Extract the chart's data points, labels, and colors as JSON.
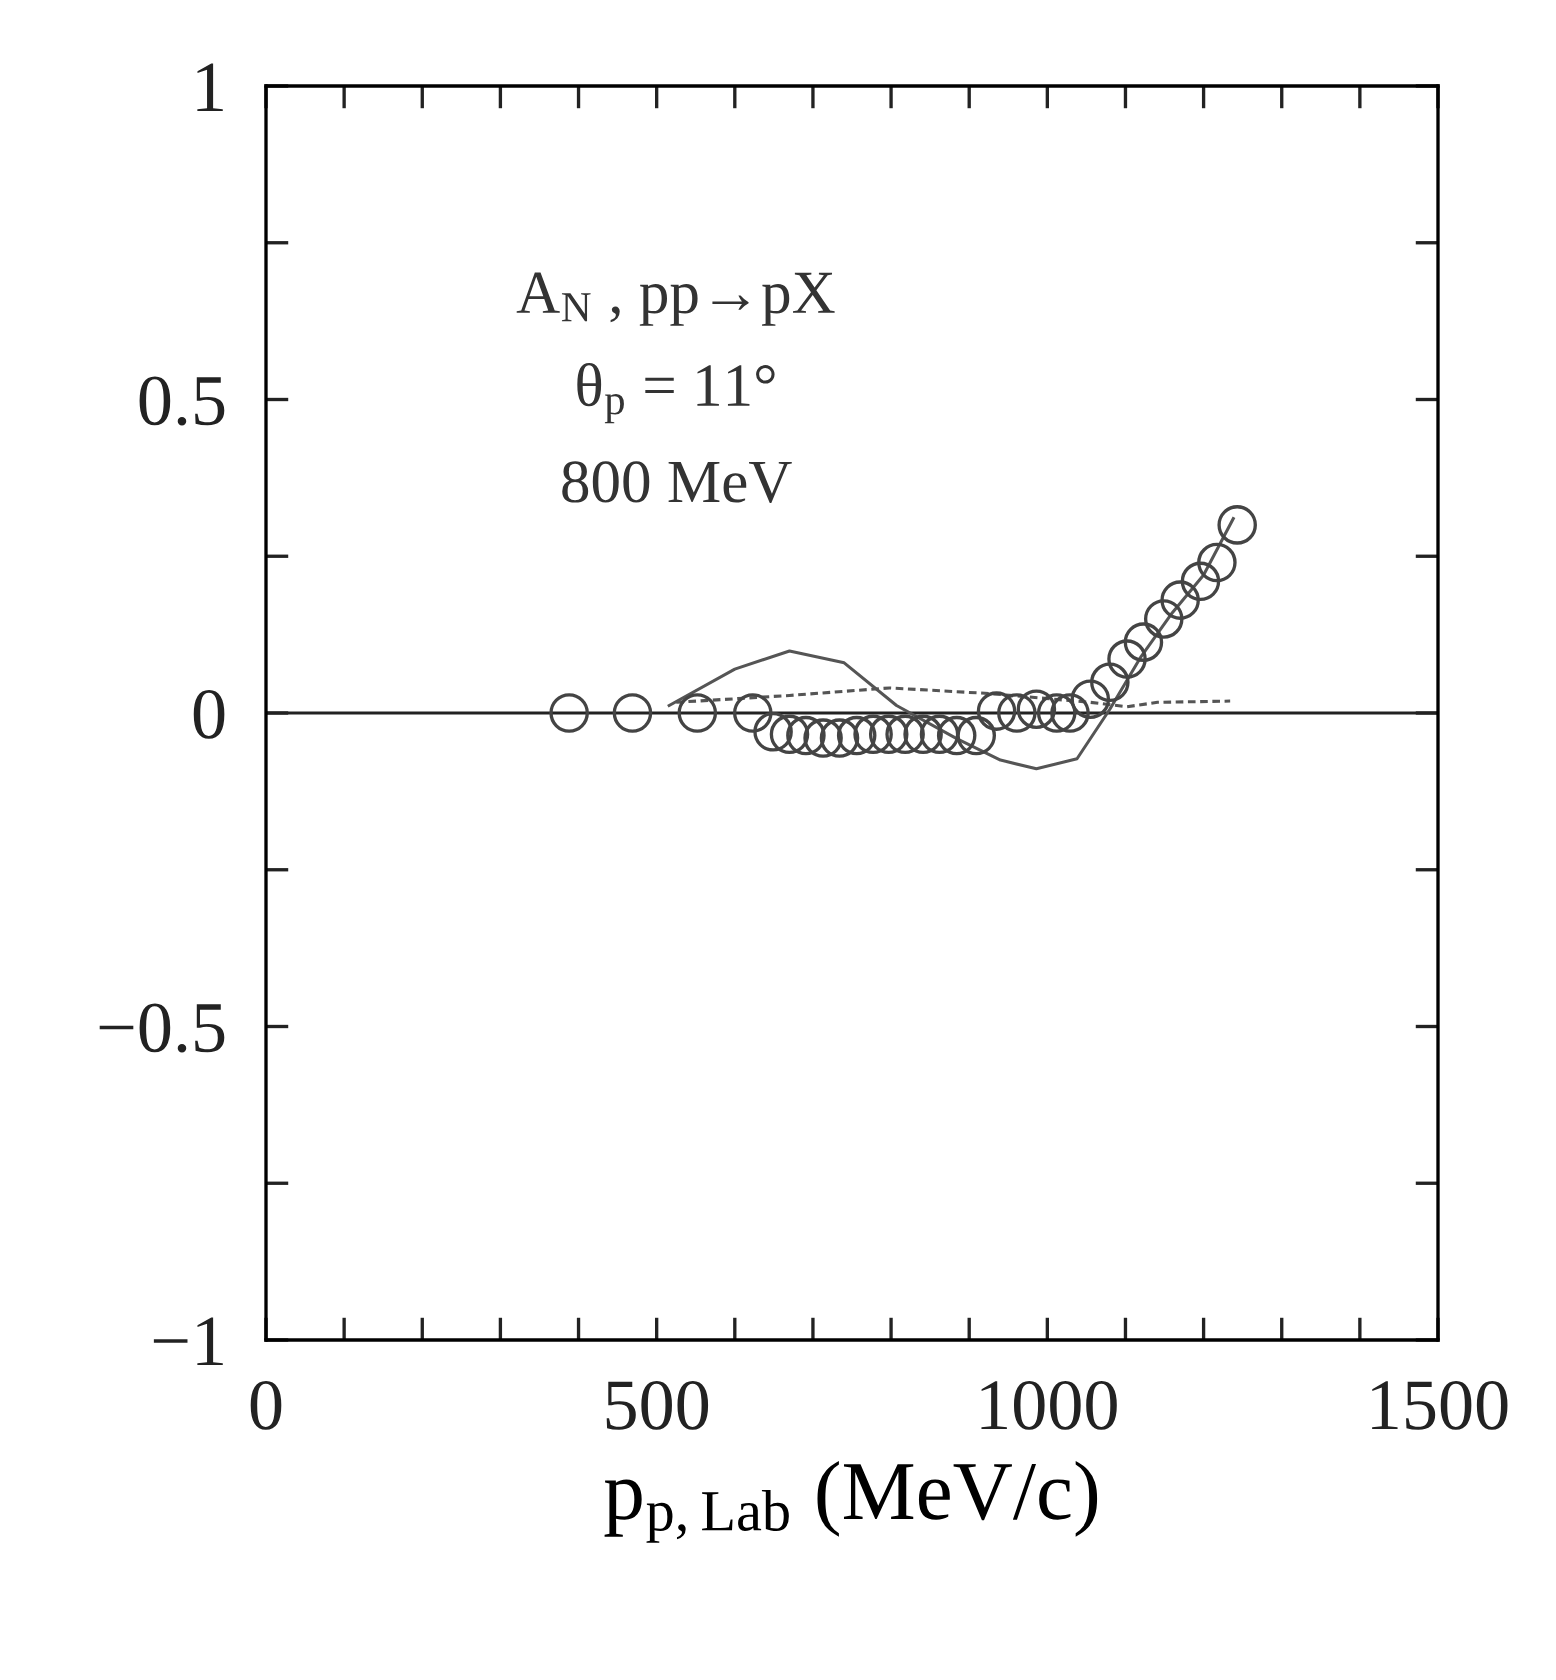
{
  "chart_data": {
    "type": "scatter",
    "xlabel": "p$_{p,Lab}$ (MeV/c)",
    "annotations": [
      "A$_{N}$ , pp→pX",
      "θ$_{p}$ = 11°",
      "800 MeV"
    ],
    "xlim": [
      0,
      1500
    ],
    "ylim": [
      -1,
      1
    ],
    "xticks": [
      0,
      {
        "value": 100,
        "label": null
      },
      {
        "value": 200,
        "label": null
      },
      {
        "value": 300,
        "label": null
      },
      {
        "value": 400,
        "label": null
      },
      500,
      {
        "value": 600,
        "label": null
      },
      {
        "value": 700,
        "label": null
      },
      {
        "value": 800,
        "label": null
      },
      {
        "value": 900,
        "label": null
      },
      1000,
      {
        "value": 1100,
        "label": null
      },
      {
        "value": 1200,
        "label": null
      },
      {
        "value": 1300,
        "label": null
      },
      {
        "value": 1400,
        "label": null
      },
      1500
    ],
    "yticks": [
      {
        "value": -1,
        "label": "−1"
      },
      {
        "value": -0.75,
        "label": null
      },
      {
        "value": -0.5,
        "label": "−0.5"
      },
      {
        "value": -0.25,
        "label": null
      },
      0,
      {
        "value": 0.25,
        "label": null
      },
      0.5,
      {
        "value": 0.75,
        "label": null
      },
      1
    ],
    "ref_lines": [
      {
        "axis": "y",
        "value": 0,
        "color": "#222222",
        "line_style": "solid"
      }
    ],
    "grid": false,
    "legend": false,
    "marker": "circle",
    "series": [
      {
        "color": "#444444",
        "x": [
          388,
          469,
          552,
          623,
          649,
          670,
          691,
          713,
          734,
          756,
          777,
          797,
          818,
          841,
          862,
          884,
          909,
          935,
          961,
          986,
          1012,
          1029,
          1055,
          1080,
          1102,
          1123,
          1149,
          1170,
          1196,
          1217,
          1243
        ],
        "values": [
          0,
          0,
          0,
          0,
          -0.03,
          -0.034,
          -0.036,
          -0.04,
          -0.04,
          -0.036,
          -0.034,
          -0.034,
          -0.034,
          -0.034,
          -0.034,
          -0.036,
          -0.036,
          0.003,
          0,
          0.006,
          0,
          0,
          0.022,
          0.049,
          0.086,
          0.113,
          0.15,
          0.18,
          0.21,
          0.24,
          0.3
        ]
      },
      {
        "color": "#555555",
        "type": "line",
        "marker": "none",
        "line_style": "solid",
        "x": [
          516,
          600,
          670,
          740,
          807,
          884,
          940,
          986,
          1038,
          1080,
          1120,
          1160,
          1200,
          1238
        ],
        "values": [
          0.012,
          0.07,
          0.099,
          0.08,
          0.012,
          -0.041,
          -0.075,
          -0.089,
          -0.073,
          0.006,
          0.09,
          0.16,
          0.22,
          0.31
        ]
      },
      {
        "color": "#555555",
        "type": "line",
        "marker": "none",
        "line_style": "dashed",
        "x": [
          525,
          670,
          798,
          926,
          1055,
          1102,
          1141,
          1234
        ],
        "values": [
          0.017,
          0.028,
          0.04,
          0.031,
          0.017,
          0.01,
          0.017,
          0.019
        ]
      }
    ]
  }
}
